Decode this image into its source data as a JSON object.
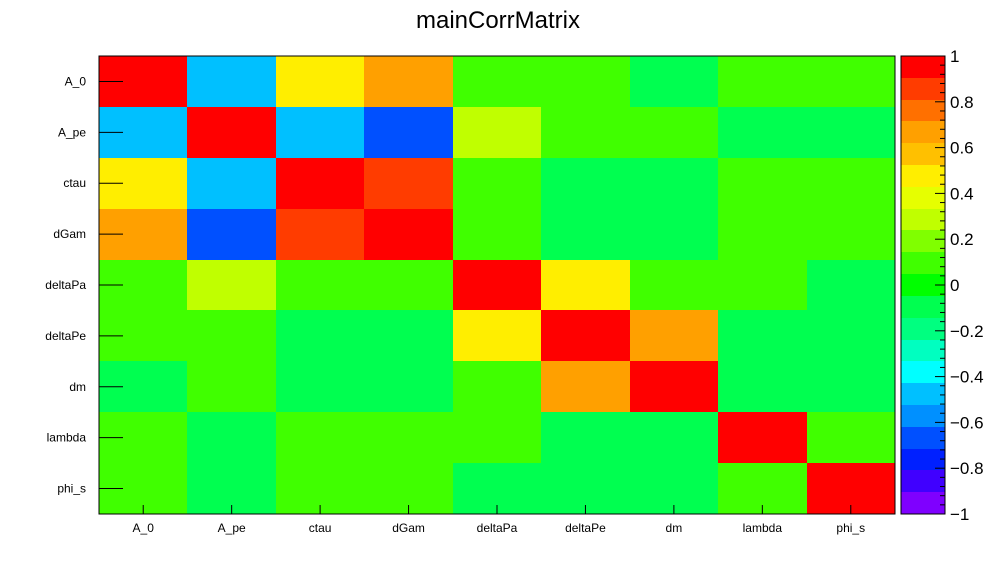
{
  "chart_data": {
    "type": "heatmap",
    "title": "mainCorrMatrix",
    "x_categories": [
      "A_0",
      "A_pe",
      "ctau",
      "dGam",
      "deltaPa",
      "deltaPe",
      "dm",
      "lambda",
      "phi_s"
    ],
    "y_categories": [
      "A_0",
      "A_pe",
      "ctau",
      "dGam",
      "deltaPa",
      "deltaPe",
      "dm",
      "lambda",
      "phi_s"
    ],
    "values": [
      [
        1.0,
        -0.5,
        0.5,
        0.65,
        0.05,
        0.05,
        -0.05,
        0.05,
        0.05
      ],
      [
        -0.5,
        1.0,
        -0.5,
        -0.7,
        0.25,
        0.05,
        0.05,
        -0.05,
        -0.05
      ],
      [
        0.5,
        -0.5,
        1.0,
        0.9,
        0.05,
        -0.05,
        -0.05,
        0.05,
        0.05
      ],
      [
        0.65,
        -0.7,
        0.9,
        1.0,
        0.05,
        -0.05,
        -0.05,
        0.05,
        0.05
      ],
      [
        0.05,
        0.25,
        0.05,
        0.05,
        1.0,
        0.45,
        0.05,
        0.05,
        -0.05
      ],
      [
        0.05,
        0.05,
        -0.05,
        -0.05,
        0.45,
        1.0,
        0.65,
        -0.05,
        -0.05
      ],
      [
        -0.05,
        0.05,
        -0.05,
        -0.05,
        0.05,
        0.65,
        1.0,
        -0.05,
        -0.05
      ],
      [
        0.05,
        -0.05,
        0.05,
        0.05,
        0.05,
        -0.05,
        -0.05,
        1.0,
        0.05
      ],
      [
        0.05,
        -0.05,
        0.05,
        0.05,
        -0.05,
        -0.05,
        -0.05,
        0.05,
        1.0
      ]
    ],
    "zlim": [
      -1,
      1
    ],
    "colorbar": {
      "tick_values": [
        1,
        0.8,
        0.6,
        0.4,
        0.2,
        0,
        -0.2,
        -0.4,
        -0.6,
        -0.8,
        -1
      ],
      "tick_labels": [
        "1",
        "0.8",
        "0.6",
        "0.4",
        "0.2",
        "0",
        "−0.2",
        "−0.4",
        "−0.6",
        "−0.8",
        "−1"
      ],
      "colors": [
        "#7f00ff",
        "#4000ff",
        "#0020ff",
        "#0050ff",
        "#0090ff",
        "#00c0ff",
        "#00ffff",
        "#00ffc0",
        "#00ff80",
        "#00ff50",
        "#00ff00",
        "#40ff00",
        "#80ff00",
        "#c0ff00",
        "#e6ff00",
        "#ffee00",
        "#ffc000",
        "#ffa000",
        "#ff7000",
        "#ff3c00",
        "#ff0000"
      ]
    },
    "legend": "none",
    "grid": false
  }
}
